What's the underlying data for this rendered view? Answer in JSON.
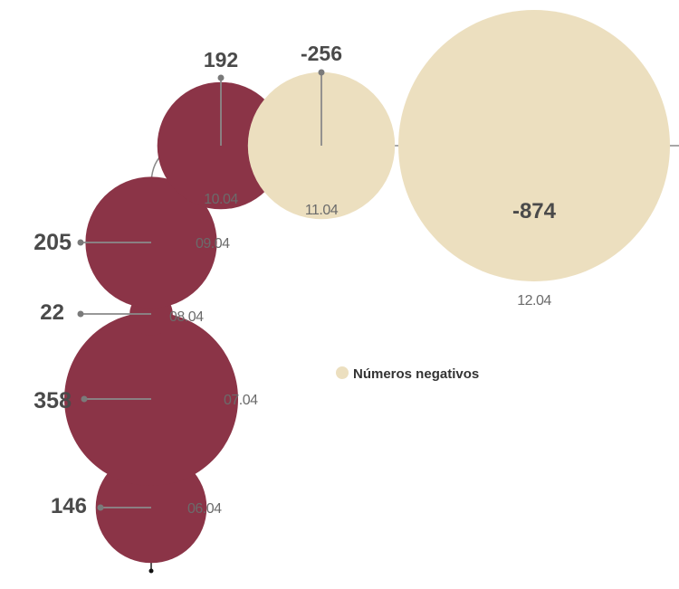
{
  "chart_data": {
    "type": "bubble",
    "title": "",
    "points": [
      {
        "date": "06.04",
        "value": 146,
        "negative": false
      },
      {
        "date": "07.04",
        "value": 358,
        "negative": false
      },
      {
        "date": "08.04",
        "value": 22,
        "negative": false
      },
      {
        "date": "09.04",
        "value": 205,
        "negative": false
      },
      {
        "date": "10.04",
        "value": 192,
        "negative": false
      },
      {
        "date": "11.04",
        "value": -256,
        "negative": true
      },
      {
        "date": "12.04",
        "value": -874,
        "negative": true
      }
    ],
    "legend": {
      "label": "Números negativos",
      "placement": "center-right"
    },
    "colors": {
      "positive": "#8b3447",
      "negative": "#ecdfbf",
      "line": "#8a8a8a",
      "dot": "#7a7a7a",
      "value_text": "#4a4a4a",
      "date_text": "#6b6b6b"
    }
  }
}
